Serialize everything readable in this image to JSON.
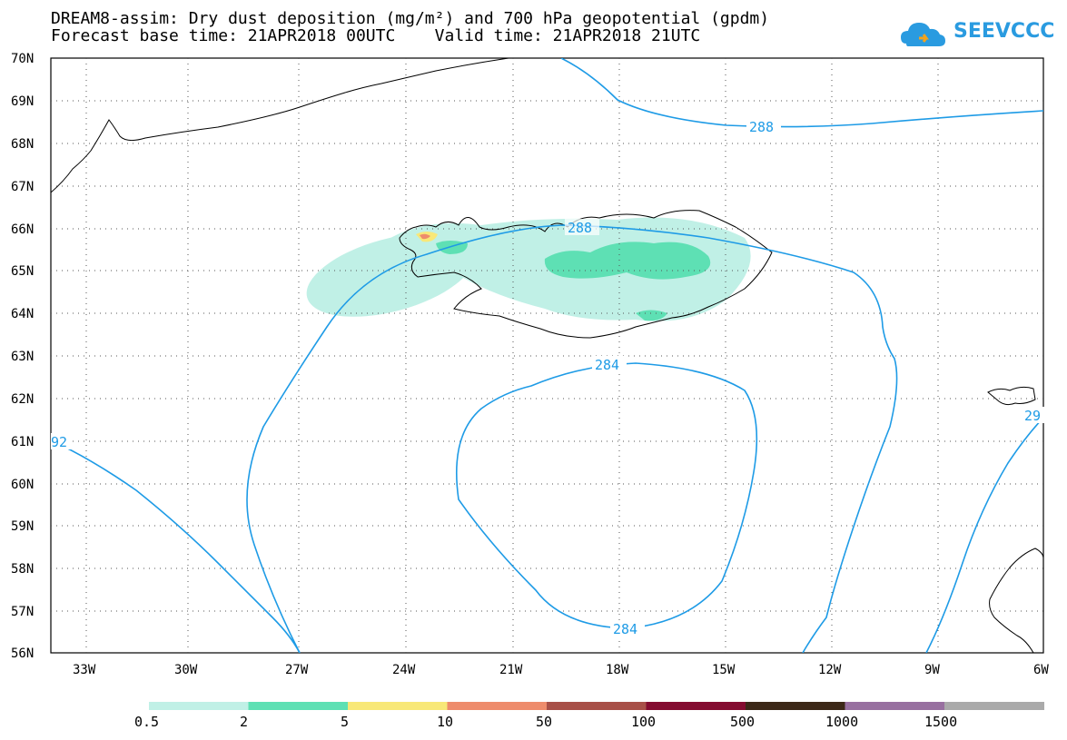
{
  "title": {
    "line1": "DREAM8-assim: Dry dust deposition (mg/m²) and 700 hPa geopotential (gpdm)",
    "line2": "Forecast base time: 21APR2018 00UTC    Valid time: 21APR2018 21UTC"
  },
  "logo": {
    "text": "SEEVCCC",
    "icon": "cloud-logo-icon",
    "color": "#2a9be0"
  },
  "axes": {
    "lat_labels": [
      "70N",
      "69N",
      "68N",
      "67N",
      "66N",
      "65N",
      "64N",
      "63N",
      "62N",
      "61N",
      "60N",
      "59N",
      "58N",
      "57N",
      "56N"
    ],
    "lon_labels": [
      "33W",
      "30W",
      "27W",
      "24W",
      "21W",
      "18W",
      "15W",
      "12W",
      "9W",
      "6W"
    ]
  },
  "contours": {
    "color": "#1e9be6",
    "labels": [
      "288",
      "288",
      "284",
      "284",
      "92",
      "29"
    ]
  },
  "legend": {
    "colors": [
      "#c0f0e6",
      "#5ee0b4",
      "#f8e878",
      "#ee8c6c",
      "#a85048",
      "#840c30",
      "#3c2818",
      "#9870a0",
      "#aaaaaa"
    ],
    "labels": [
      "0.5",
      "2",
      "5",
      "10",
      "50",
      "100",
      "500",
      "1000",
      "1500"
    ]
  }
}
